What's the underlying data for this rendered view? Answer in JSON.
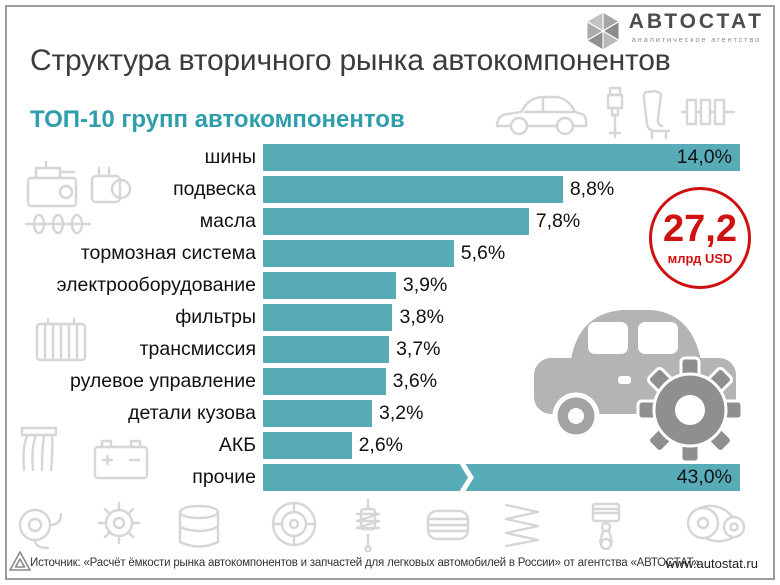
{
  "brand": {
    "name": "АВТОСТАТ",
    "tagline": "аналитическое агентство"
  },
  "title": "Структура вторичного рынка автокомпонентов",
  "chart_data": {
    "type": "bar",
    "orientation": "horizontal",
    "title": "ТОП-10 групп автокомпонентов",
    "categories": [
      "шины",
      "подвеска",
      "масла",
      "тормозная система",
      "электрооборудование",
      "фильтры",
      "трансмиссия",
      "рулевое управление",
      "детали кузова",
      "АКБ",
      "прочие"
    ],
    "values": [
      14.0,
      8.8,
      7.8,
      5.6,
      3.9,
      3.8,
      3.7,
      3.6,
      3.2,
      2.6,
      43.0
    ],
    "labels": [
      "14,0%",
      "8,8%",
      "7,8%",
      "5,6%",
      "3,9%",
      "3,8%",
      "3,7%",
      "3,6%",
      "3,2%",
      "2,6%",
      "43,0%"
    ],
    "xlim": [
      0,
      14
    ],
    "bar_color": "#58acb8",
    "axis_break": {
      "index": 10,
      "position": 0.41
    },
    "legend": false,
    "grid": false
  },
  "badge": {
    "value": "27,2",
    "unit": "млрд USD",
    "color": "#d01111"
  },
  "footer": {
    "source": "Источник: «Расчёт ёмкости рынка автокомпонентов и запчастей для легковых автомобилей в России» от агентства «АВТОСТАТ»",
    "website": "www.autostat.ru"
  },
  "decorative_icons": [
    "hexagon-logo-icon",
    "car-icon",
    "spark-plug-icon",
    "seat-icon",
    "crankshaft-icon",
    "engine-icon",
    "gearbox-icon",
    "camshaft-icon",
    "radiator-icon",
    "exhaust-manifold-icon",
    "battery-icon",
    "turbocharger-icon",
    "gear-icon",
    "oil-drum-icon",
    "wheel-icon",
    "shock-absorber-icon",
    "air-filter-icon",
    "coil-spring-icon",
    "piston-icon",
    "timing-chain-icon",
    "car-with-gear-illustration",
    "triangle-icon"
  ]
}
